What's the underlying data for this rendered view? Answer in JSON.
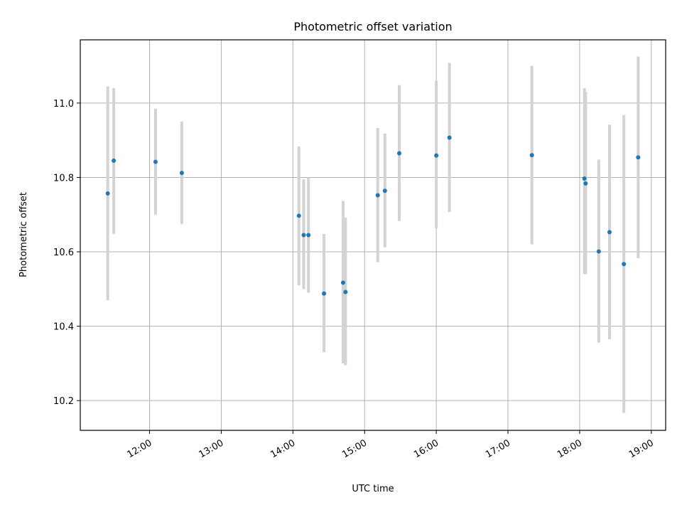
{
  "chart_data": {
    "type": "scatter",
    "title": "Photometric offset variation",
    "xlabel": "UTC time",
    "ylabel": "Photometric offset",
    "xlim": [
      "11:02",
      "19:12"
    ],
    "ylim": [
      10.12,
      11.17
    ],
    "x_ticks": [
      "12:00",
      "13:00",
      "14:00",
      "15:00",
      "16:00",
      "17:00",
      "18:00",
      "19:00"
    ],
    "y_ticks": [
      10.2,
      10.4,
      10.6,
      10.8,
      11.0
    ],
    "y_tick_labels": [
      "10.2",
      "10.4",
      "10.6",
      "10.8",
      "11.0"
    ],
    "grid": true,
    "point_color": "#1f77b4",
    "errorbar_color": "#d3d3d3",
    "points": [
      {
        "time": "11:25",
        "y": 10.757,
        "lo": 10.47,
        "hi": 11.045
      },
      {
        "time": "11:30",
        "y": 10.845,
        "lo": 10.648,
        "hi": 11.04
      },
      {
        "time": "12:05",
        "y": 10.842,
        "lo": 10.7,
        "hi": 10.985
      },
      {
        "time": "12:27",
        "y": 10.812,
        "lo": 10.675,
        "hi": 10.95
      },
      {
        "time": "14:05",
        "y": 10.697,
        "lo": 10.51,
        "hi": 10.883
      },
      {
        "time": "14:09",
        "y": 10.645,
        "lo": 10.5,
        "hi": 10.795
      },
      {
        "time": "14:13",
        "y": 10.645,
        "lo": 10.49,
        "hi": 10.8
      },
      {
        "time": "14:26",
        "y": 10.488,
        "lo": 10.33,
        "hi": 10.648
      },
      {
        "time": "14:42",
        "y": 10.517,
        "lo": 10.3,
        "hi": 10.737
      },
      {
        "time": "14:44",
        "y": 10.492,
        "lo": 10.295,
        "hi": 10.692
      },
      {
        "time": "15:11",
        "y": 10.752,
        "lo": 10.572,
        "hi": 10.933
      },
      {
        "time": "15:17",
        "y": 10.764,
        "lo": 10.612,
        "hi": 10.918
      },
      {
        "time": "15:29",
        "y": 10.865,
        "lo": 10.683,
        "hi": 11.048
      },
      {
        "time": "16:00",
        "y": 10.859,
        "lo": 10.663,
        "hi": 11.06
      },
      {
        "time": "16:11",
        "y": 10.907,
        "lo": 10.707,
        "hi": 11.108
      },
      {
        "time": "17:20",
        "y": 10.86,
        "lo": 10.62,
        "hi": 11.1
      },
      {
        "time": "18:04",
        "y": 10.797,
        "lo": 10.54,
        "hi": 11.04
      },
      {
        "time": "18:05",
        "y": 10.784,
        "lo": 10.54,
        "hi": 11.03
      },
      {
        "time": "18:16",
        "y": 10.601,
        "lo": 10.356,
        "hi": 10.848
      },
      {
        "time": "18:25",
        "y": 10.653,
        "lo": 10.365,
        "hi": 10.942
      },
      {
        "time": "18:37",
        "y": 10.567,
        "lo": 10.167,
        "hi": 10.968
      },
      {
        "time": "18:49",
        "y": 10.854,
        "lo": 10.583,
        "hi": 11.125
      }
    ]
  }
}
